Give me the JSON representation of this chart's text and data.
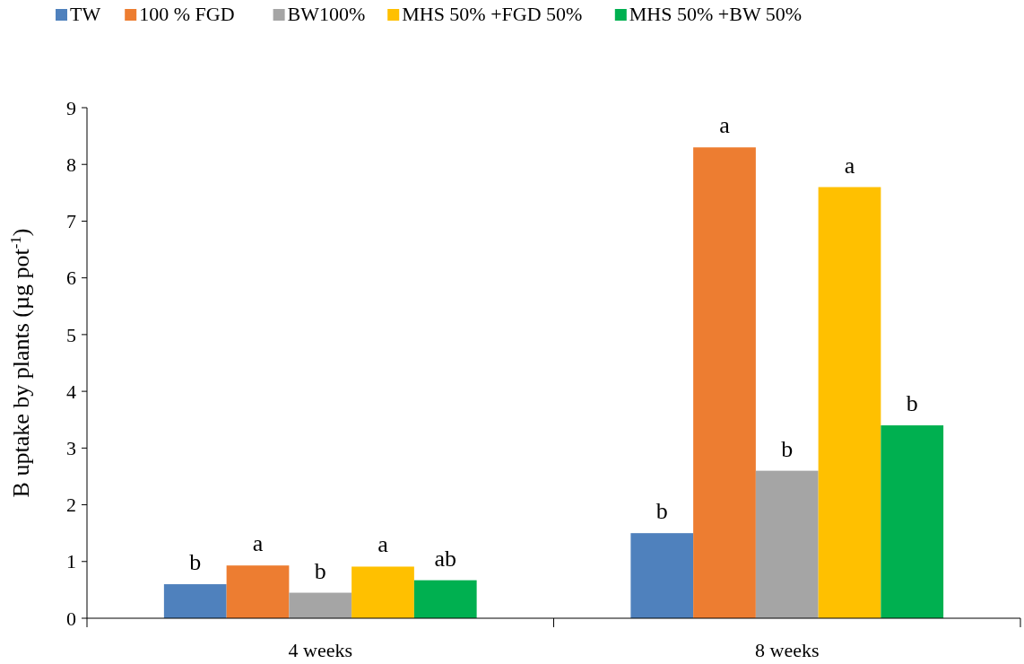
{
  "chart_data": {
    "type": "bar",
    "ylabel": "B uptake by plants (µg pot$^{-1}$)",
    "categories": [
      "4 weeks",
      "8 weeks"
    ],
    "ylim": [
      0,
      9
    ],
    "yticks": [
      0,
      1,
      2,
      3,
      4,
      5,
      6,
      7,
      8,
      9
    ],
    "grid": false,
    "legend": "top",
    "series": [
      {
        "name": "TW",
        "color": "#4f81bd",
        "values": [
          0.6,
          1.5
        ],
        "value_labels": [
          "b",
          "b"
        ]
      },
      {
        "name": "100 % FGD",
        "color": "#ed7d31",
        "values": [
          0.93,
          8.3
        ],
        "value_labels": [
          "a",
          "a"
        ]
      },
      {
        "name": "BW100%",
        "color": "#a5a5a5",
        "values": [
          0.45,
          2.6
        ],
        "value_labels": [
          "b",
          "b"
        ]
      },
      {
        "name": "MHS 50% +FGD 50%",
        "color": "#ffc000",
        "values": [
          0.91,
          7.6
        ],
        "value_labels": [
          "a",
          "a"
        ]
      },
      {
        "name": "MHS 50% +BW 50%",
        "color": "#00b050",
        "values": [
          0.67,
          3.4
        ],
        "value_labels": [
          "ab",
          "b"
        ]
      }
    ]
  }
}
